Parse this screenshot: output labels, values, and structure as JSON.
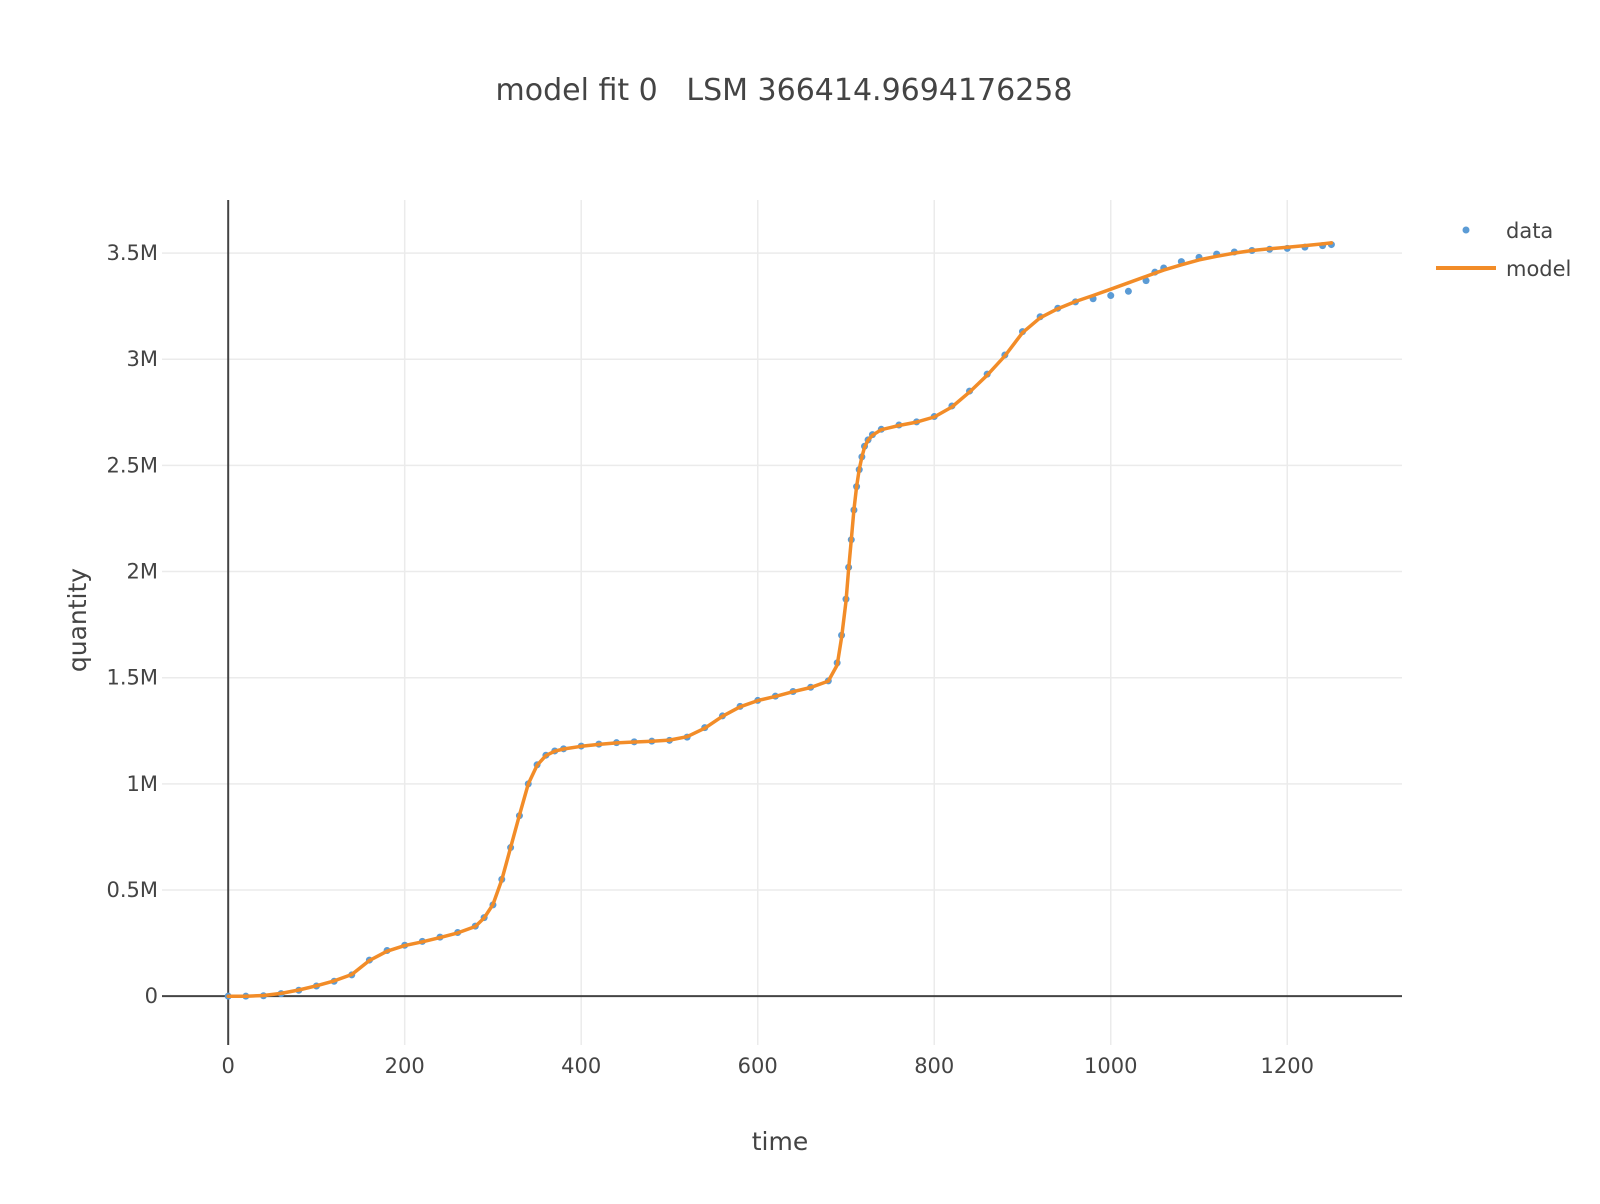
{
  "chart_data": {
    "type": "scatter",
    "title": "model fit 0   LSM 366414.9694176258",
    "xlabel": "time",
    "ylabel": "quantity",
    "xlim": [
      -75,
      1330
    ],
    "ylim": [
      -230000,
      3750000
    ],
    "grid": true,
    "legend_position": "top-right",
    "x_ticks": [
      {
        "value": 0,
        "label": "0"
      },
      {
        "value": 200,
        "label": "200"
      },
      {
        "value": 400,
        "label": "400"
      },
      {
        "value": 600,
        "label": "600"
      },
      {
        "value": 800,
        "label": "800"
      },
      {
        "value": 1000,
        "label": "1000"
      },
      {
        "value": 1200,
        "label": "1200"
      }
    ],
    "y_ticks": [
      {
        "value": 0,
        "label": "0"
      },
      {
        "value": 500000,
        "label": "0.5M"
      },
      {
        "value": 1000000,
        "label": "1M"
      },
      {
        "value": 1500000,
        "label": "1.5M"
      },
      {
        "value": 2000000,
        "label": "2M"
      },
      {
        "value": 2500000,
        "label": "2.5M"
      },
      {
        "value": 3000000,
        "label": "3M"
      },
      {
        "value": 3500000,
        "label": "3.5M"
      }
    ],
    "series": [
      {
        "name": "data",
        "mode": "markers",
        "color": "#5b9bd5",
        "x": [
          0,
          20,
          40,
          60,
          80,
          100,
          120,
          140,
          160,
          180,
          200,
          220,
          240,
          260,
          280,
          290,
          300,
          310,
          320,
          330,
          340,
          350,
          360,
          370,
          380,
          400,
          420,
          440,
          460,
          480,
          500,
          520,
          540,
          560,
          580,
          600,
          620,
          640,
          660,
          680,
          690,
          695,
          700,
          703,
          706,
          709,
          712,
          715,
          718,
          721,
          725,
          730,
          740,
          760,
          780,
          800,
          820,
          840,
          860,
          880,
          900,
          920,
          940,
          960,
          980,
          1000,
          1020,
          1040,
          1050,
          1060,
          1080,
          1100,
          1120,
          1140,
          1160,
          1180,
          1200,
          1220,
          1240,
          1250
        ],
        "y": [
          0,
          0,
          2000,
          12000,
          28000,
          48000,
          70000,
          100000,
          170000,
          215000,
          240000,
          258000,
          278000,
          300000,
          330000,
          370000,
          430000,
          550000,
          700000,
          850000,
          1000000,
          1090000,
          1135000,
          1155000,
          1165000,
          1178000,
          1187000,
          1194000,
          1198000,
          1201000,
          1205000,
          1220000,
          1265000,
          1320000,
          1365000,
          1393000,
          1413000,
          1435000,
          1455000,
          1485000,
          1570000,
          1700000,
          1870000,
          2020000,
          2150000,
          2290000,
          2400000,
          2480000,
          2540000,
          2590000,
          2620000,
          2645000,
          2670000,
          2690000,
          2705000,
          2730000,
          2780000,
          2850000,
          2930000,
          3020000,
          3130000,
          3200000,
          3240000,
          3270000,
          3285000,
          3300000,
          3320000,
          3370000,
          3410000,
          3430000,
          3460000,
          3480000,
          3495000,
          3505000,
          3512000,
          3518000,
          3522000,
          3528000,
          3535000,
          3540000
        ]
      },
      {
        "name": "model",
        "mode": "lines",
        "color": "#f28c28",
        "x": [
          0,
          20,
          40,
          60,
          80,
          100,
          120,
          140,
          160,
          180,
          200,
          220,
          240,
          260,
          280,
          290,
          300,
          310,
          320,
          330,
          340,
          350,
          360,
          370,
          380,
          400,
          420,
          440,
          460,
          480,
          500,
          520,
          540,
          560,
          580,
          600,
          620,
          640,
          660,
          680,
          690,
          695,
          700,
          703,
          706,
          709,
          712,
          715,
          718,
          721,
          725,
          730,
          740,
          760,
          780,
          800,
          820,
          840,
          860,
          880,
          900,
          920,
          940,
          960,
          980,
          1000,
          1020,
          1040,
          1050,
          1060,
          1080,
          1100,
          1120,
          1140,
          1160,
          1180,
          1200,
          1220,
          1240,
          1250
        ],
        "y": [
          0,
          0,
          3000,
          13000,
          29000,
          49000,
          72000,
          102000,
          168000,
          212000,
          238000,
          256000,
          276000,
          298000,
          328000,
          368000,
          432000,
          548000,
          700000,
          852000,
          1000000,
          1088000,
          1133000,
          1154000,
          1164000,
          1177000,
          1186000,
          1193000,
          1197000,
          1201000,
          1206000,
          1222000,
          1262000,
          1318000,
          1363000,
          1392000,
          1412000,
          1434000,
          1454000,
          1484000,
          1560000,
          1690000,
          1860000,
          2010000,
          2150000,
          2290000,
          2400000,
          2480000,
          2540000,
          2585000,
          2618000,
          2642000,
          2668000,
          2688000,
          2704000,
          2728000,
          2775000,
          2845000,
          2925000,
          3015000,
          3125000,
          3195000,
          3238000,
          3272000,
          3300000,
          3330000,
          3360000,
          3390000,
          3405000,
          3420000,
          3445000,
          3468000,
          3485000,
          3500000,
          3512000,
          3520000,
          3527000,
          3535000,
          3543000,
          3548000
        ]
      }
    ]
  }
}
